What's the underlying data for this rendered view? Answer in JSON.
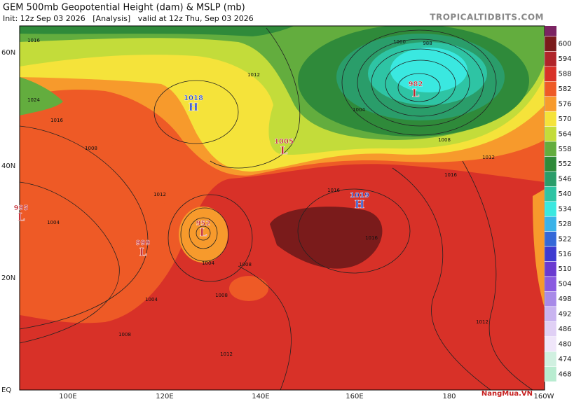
{
  "header": {
    "title": "GEM 500mb Geopotential Height (dam) & MSLP (mb)",
    "subtitle": "Init: 12z Sep 03 2026   [Analysis]   valid at 12z Thu, Sep 03 2026",
    "brand": "TROPICALTIDBITS.COM"
  },
  "lat_labels": [
    "60N",
    "40N",
    "20N",
    "EQ"
  ],
  "lon_labels": [
    "100E",
    "120E",
    "140E",
    "160E",
    "180",
    "160W"
  ],
  "colorbar": {
    "levels": [
      600,
      594,
      588,
      582,
      576,
      570,
      564,
      558,
      552,
      546,
      540,
      534,
      528,
      522,
      516,
      510,
      504,
      498,
      492,
      486,
      480,
      474,
      468
    ],
    "colors": [
      "#7a1b1b",
      "#b0242a",
      "#d83128",
      "#ee5a26",
      "#f79a2c",
      "#f5e33a",
      "#c3dc3a",
      "#63ad3e",
      "#2f8a3a",
      "#2a9d6a",
      "#2ec4a4",
      "#3ae8e0",
      "#3ab2e8",
      "#3468d8",
      "#3d3ad0",
      "#6a3ad0",
      "#8a5ae0",
      "#a88ae8",
      "#c9b4f0",
      "#e0d0f5",
      "#f0e6fa",
      "#d0f0e0",
      "#b8ecd0"
    ]
  },
  "pressure_centers": [
    {
      "letter": "H",
      "value": "1018"
    },
    {
      "letter": "L",
      "value": "1005"
    },
    {
      "letter": "L",
      "value": "982"
    },
    {
      "letter": "H",
      "value": "1019"
    },
    {
      "letter": "L",
      "value": "995"
    },
    {
      "letter": "L",
      "value": "999"
    },
    {
      "letter": "L",
      "value": "952"
    }
  ],
  "isobar_labels": [
    "1016",
    "1024",
    "1008",
    "1016",
    "1012",
    "1004",
    "1000",
    "988",
    "1004",
    "1008",
    "1016",
    "1012",
    "1016",
    "1004",
    "1008",
    "1008",
    "1004",
    "1012",
    "1008",
    "1016",
    "1012",
    "1012"
  ],
  "watermark": "NangMua.VN"
}
